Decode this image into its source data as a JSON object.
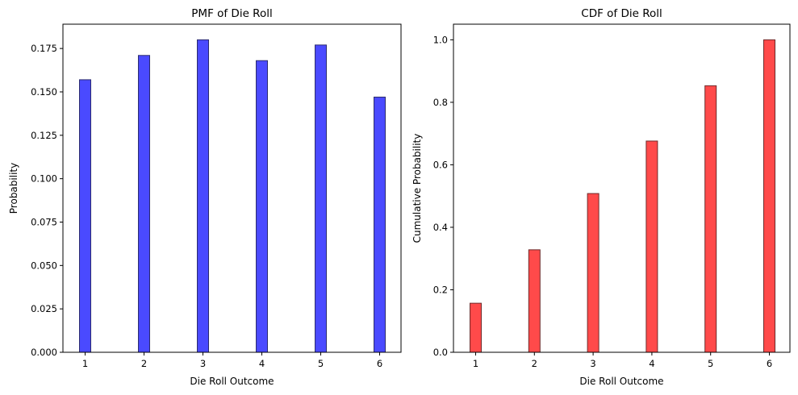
{
  "chart_data": [
    {
      "type": "bar",
      "title": "PMF of Die Roll",
      "xlabel": "Die Roll Outcome",
      "ylabel": "Probability",
      "categories": [
        "1",
        "2",
        "3",
        "4",
        "5",
        "6"
      ],
      "values": [
        0.157,
        0.171,
        0.18,
        0.168,
        0.177,
        0.147
      ],
      "ylim": [
        0,
        0.189
      ],
      "yticks": [
        "0.000",
        "0.025",
        "0.050",
        "0.075",
        "0.100",
        "0.125",
        "0.150",
        "0.175"
      ],
      "bar_color": "#4a4aff",
      "edge_color": "#2b2b6e",
      "grid": false
    },
    {
      "type": "bar",
      "title": "CDF of Die Roll",
      "xlabel": "Die Roll Outcome",
      "ylabel": "Cumulative Probability",
      "categories": [
        "1",
        "2",
        "3",
        "4",
        "5",
        "6"
      ],
      "values": [
        0.157,
        0.328,
        0.508,
        0.676,
        0.853,
        1.0
      ],
      "ylim": [
        0,
        1.05
      ],
      "yticks": [
        "0.0",
        "0.2",
        "0.4",
        "0.6",
        "0.8",
        "1.0"
      ],
      "bar_color": "#ff4a4a",
      "edge_color": "#6e2b2b",
      "grid": false
    }
  ]
}
